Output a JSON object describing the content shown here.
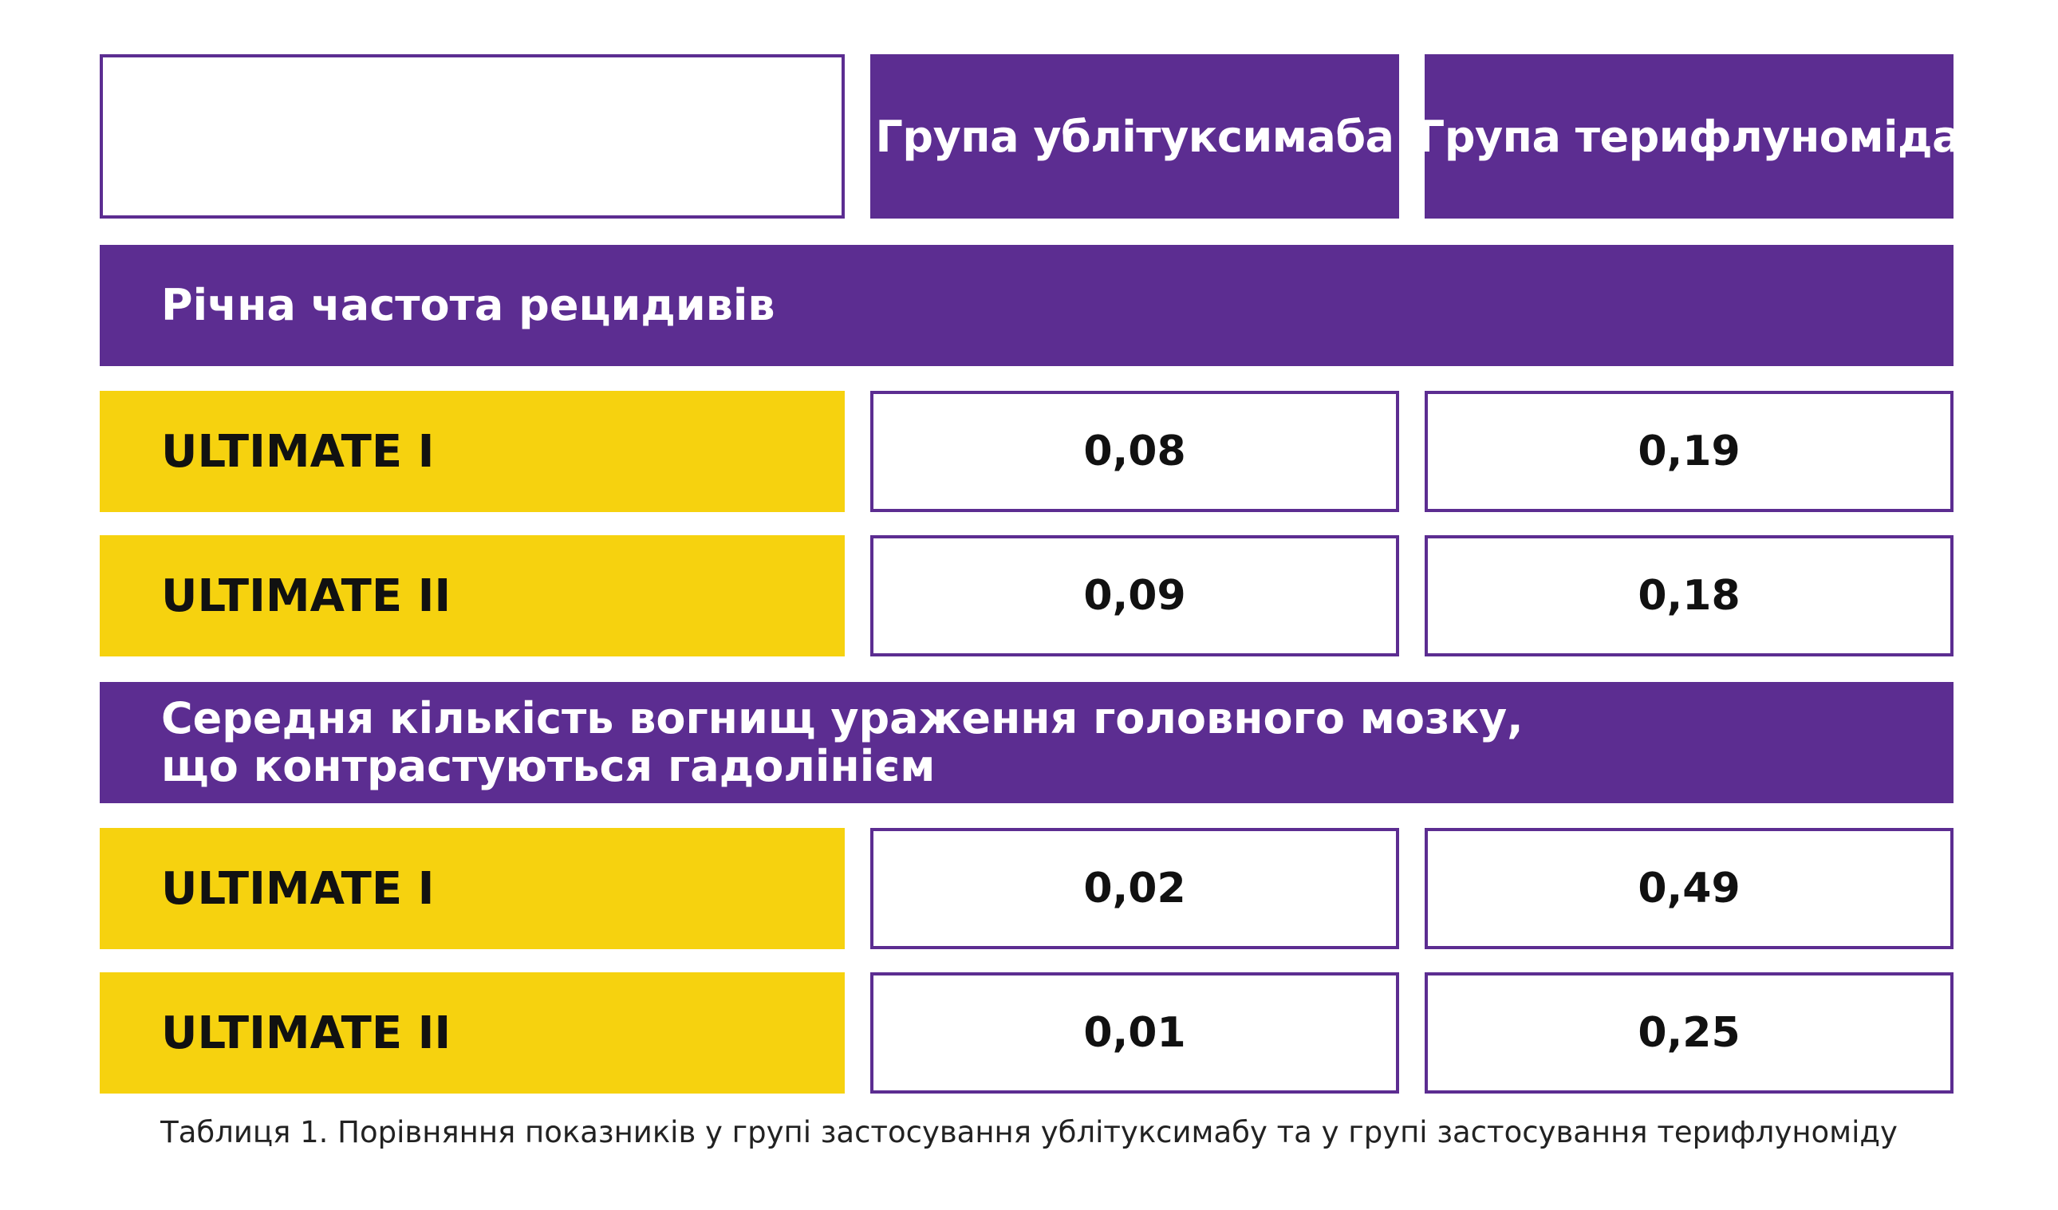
{
  "table": {
    "columns": [
      "Група ублітуксимаба",
      "Група терифлуноміда"
    ],
    "sections": [
      {
        "title_lines": [
          "Річна частота рецидивів"
        ],
        "rows": [
          {
            "label": "ULTIMATE I",
            "values": [
              "0,08",
              "0,19"
            ]
          },
          {
            "label": "ULTIMATE II",
            "values": [
              "0,09",
              "0,18"
            ]
          }
        ]
      },
      {
        "title_lines": [
          "Середня кількість вогнищ ураження головного мозку,",
          "що контрастуються гадолінієм"
        ],
        "rows": [
          {
            "label": "ULTIMATE I",
            "values": [
              "0,02",
              "0,49"
            ]
          },
          {
            "label": "ULTIMATE II",
            "values": [
              "0,01",
              "0,25"
            ]
          }
        ]
      }
    ],
    "caption": "Таблиця 1. Порівняння показників у групі застосування ублітуксимабу та у групі застосування терифлуноміду"
  },
  "colors": {
    "purple": "#5c2d91",
    "yellow": "#f6d20f",
    "white": "#ffffff"
  }
}
